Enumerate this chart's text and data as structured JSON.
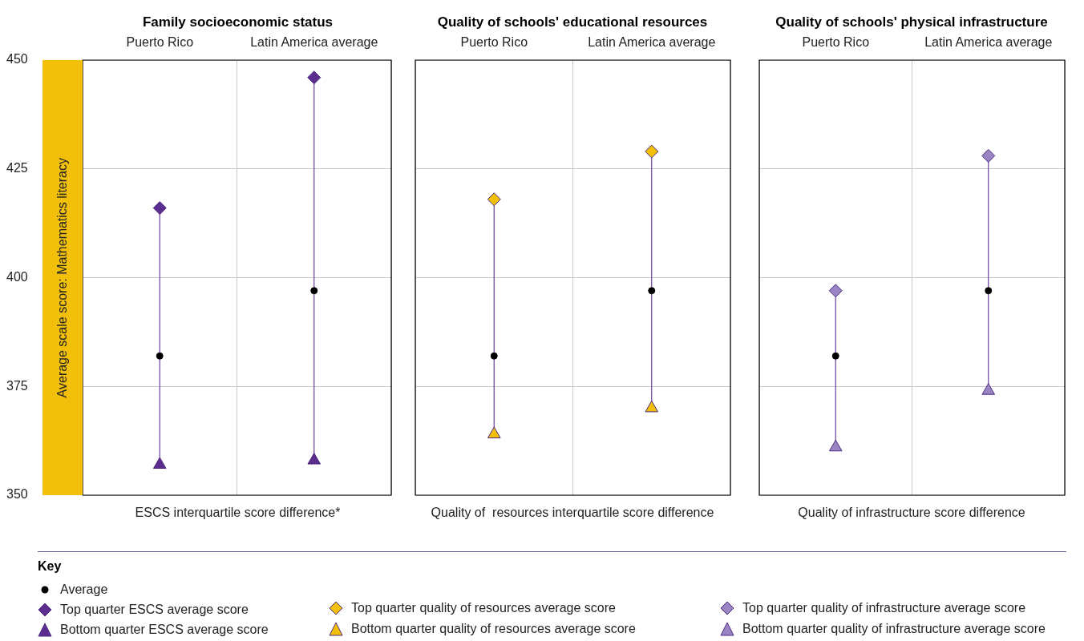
{
  "chart_data": [
    {
      "type": "scatter",
      "title": "Family socioeconomic status",
      "xlabel": "ESCS interquartile score difference*",
      "ylabel": "Average scale score: Mathematics literacy",
      "categories": [
        "Puerto Rico",
        "Latin America average"
      ],
      "ylim": [
        350,
        450
      ],
      "yticks": [
        350,
        375,
        400,
        425,
        450
      ],
      "grid": true,
      "legend": "bottom",
      "legend_title": "Key",
      "series": [
        {
          "name": "Average",
          "color": "#000000",
          "marker": "circle",
          "values": [
            382,
            397
          ]
        },
        {
          "name": "Top quarter ESCS average score",
          "color": "#5b2d8e",
          "marker": "diamond",
          "values": [
            416,
            446
          ]
        },
        {
          "name": "Bottom quarter ESCS average score",
          "color": "#5b2d8e",
          "marker": "triangle",
          "values": [
            357,
            358
          ]
        }
      ]
    },
    {
      "type": "scatter",
      "title": "Quality of schools' educational resources",
      "xlabel": "Quality of  resources interquartile score difference",
      "categories": [
        "Puerto Rico",
        "Latin America average"
      ],
      "ylim": [
        350,
        450
      ],
      "yticks": [
        350,
        375,
        400,
        425,
        450
      ],
      "grid": true,
      "legend": "bottom",
      "tick_labels": "x",
      "series": [
        {
          "color": "#000000",
          "marker": "circle",
          "values": [
            382,
            397
          ]
        },
        {
          "name": "Top quarter quality of resources average score",
          "color": "#f2c00a",
          "marker": "diamond",
          "values": [
            418,
            429
          ]
        },
        {
          "name": "Bottom quarter quality of resources average score",
          "color": "#f2c00a",
          "marker": "triangle",
          "values": [
            364,
            370
          ]
        }
      ]
    },
    {
      "type": "scatter",
      "title": "Quality of schools' physical infrastructure",
      "xlabel": "Quality of infrastructure score difference",
      "categories": [
        "Puerto Rico",
        "Latin America average"
      ],
      "ylim": [
        350,
        450
      ],
      "yticks": [
        350,
        375,
        400,
        425,
        450
      ],
      "grid": true,
      "legend": "bottom",
      "tick_labels": "x",
      "series": [
        {
          "color": "#000000",
          "marker": "circle",
          "values": [
            382,
            397
          ]
        },
        {
          "name": "Top quarter quality of infrastructure average score",
          "color": "#9b84c4",
          "marker": "diamond",
          "values": [
            397,
            428
          ]
        },
        {
          "name": "Bottom quarter quality of infrastructure average score",
          "color": "#9b84c4",
          "marker": "triangle",
          "values": [
            361,
            374
          ]
        }
      ]
    }
  ]
}
